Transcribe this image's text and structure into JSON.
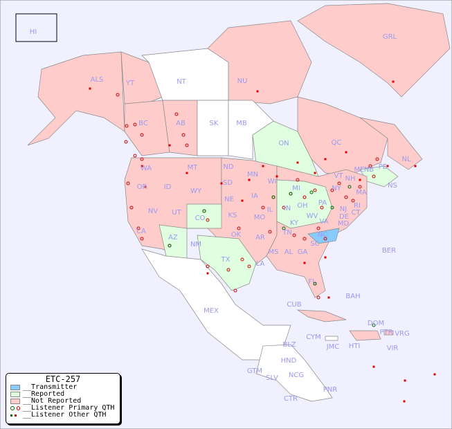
{
  "map": {
    "background_color": "#f0f0ff",
    "colors": {
      "transmitter": "#88ccff",
      "reported": "#e0ffe0",
      "not_reported": "#ffcccc",
      "no_data": "#ffffff",
      "listener_primary": "#cc0000",
      "listener_primary_reported": "#006600",
      "listener_other": "#dd0000"
    },
    "region_labels": [
      "HI",
      "ALS",
      "YT",
      "NT",
      "NU",
      "GRL",
      "BC",
      "AB",
      "SK",
      "MB",
      "ON",
      "QC",
      "NL",
      "NS",
      "NB",
      "PE",
      "WA",
      "OR",
      "ID",
      "MT",
      "WY",
      "ND",
      "SD",
      "NE",
      "MN",
      "WI",
      "IA",
      "IL",
      "IN",
      "MI",
      "OH",
      "PA",
      "NY",
      "VT",
      "NH",
      "ME",
      "MA",
      "RI",
      "CT",
      "NJ",
      "DE",
      "MD",
      "VA",
      "WV",
      "KY",
      "TN",
      "NC",
      "SC",
      "GA",
      "AL",
      "MS",
      "LA",
      "AR",
      "MO",
      "KS",
      "OK",
      "TX",
      "NM",
      "AZ",
      "CO",
      "UT",
      "NV",
      "CA",
      "FL",
      "MEX",
      "CUB",
      "BAH",
      "CYM",
      "JMC",
      "HTI",
      "DOM",
      "PTR",
      "VRG",
      "VIR",
      "BER",
      "BLZ",
      "GTM",
      "HND",
      "SLV",
      "NCG",
      "CTR",
      "PNR"
    ]
  },
  "legend": {
    "title": "ETC-257",
    "items": [
      {
        "label": "__Transmitter",
        "icon": "swatch-transmitter"
      },
      {
        "label": "__Reported",
        "icon": "swatch-reported"
      },
      {
        "label": "__Not Reported",
        "icon": "swatch-not-reported"
      },
      {
        "label": "__Listener Primary QTH",
        "icon": "ring-markers"
      },
      {
        "label": "__Listener Other QTH",
        "icon": "square-markers"
      }
    ]
  }
}
